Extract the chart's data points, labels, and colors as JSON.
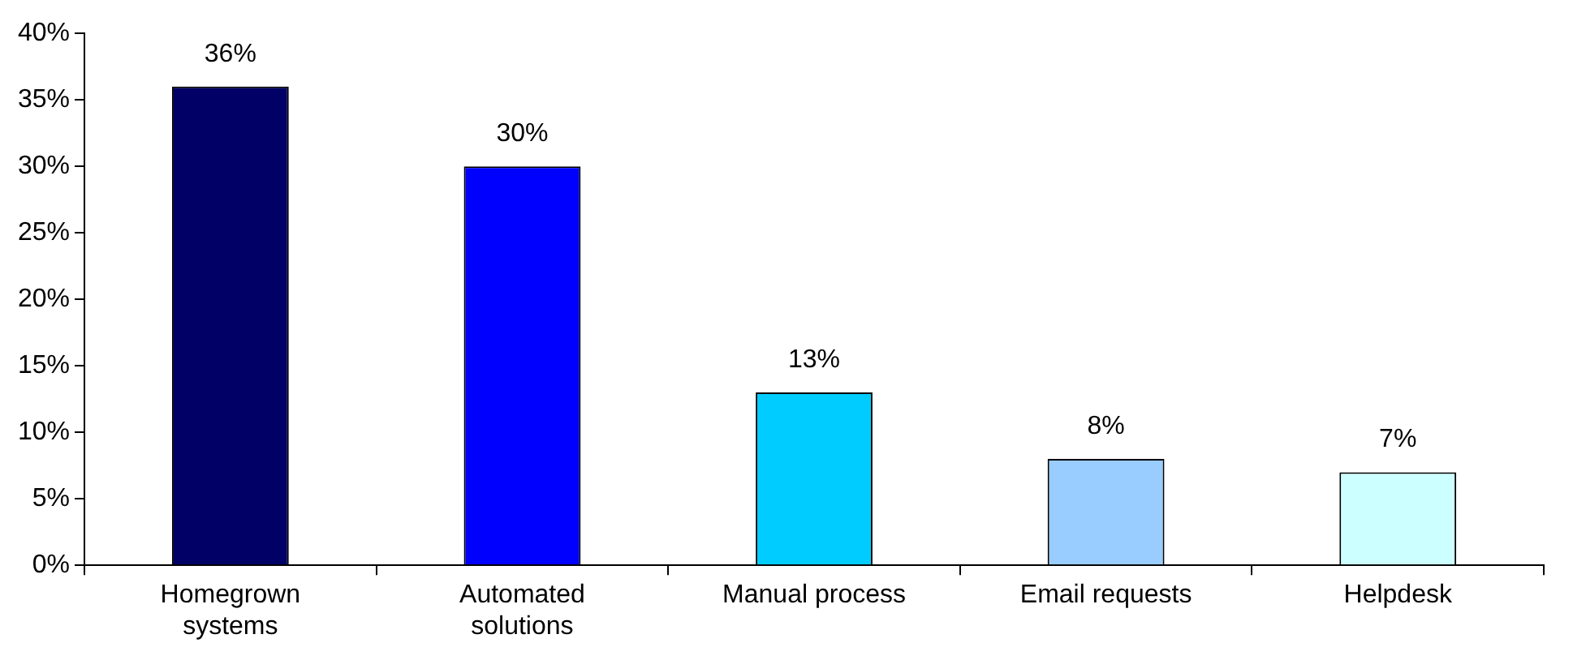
{
  "chart_data": {
    "type": "bar",
    "categories": [
      "Homegrown systems",
      "Automated solutions",
      "Manual process",
      "Email requests",
      "Helpdesk"
    ],
    "values": [
      36,
      30,
      13,
      8,
      7
    ],
    "colors": [
      "#000066",
      "#0000ff",
      "#00ccff",
      "#99ccff",
      "#ccffff"
    ],
    "value_labels": [
      "36%",
      "30%",
      "13%",
      "8%",
      "7%"
    ],
    "ylim": [
      0,
      40
    ],
    "yticks": [
      {
        "value": 0,
        "label": "0%"
      },
      {
        "value": 5,
        "label": "5%"
      },
      {
        "value": 10,
        "label": "10%"
      },
      {
        "value": 15,
        "label": "15%"
      },
      {
        "value": 20,
        "label": "20%"
      },
      {
        "value": 25,
        "label": "25%"
      },
      {
        "value": 30,
        "label": "30%"
      },
      {
        "value": 35,
        "label": "35%"
      },
      {
        "value": 40,
        "label": "40%"
      }
    ],
    "grid": false,
    "legend": false
  }
}
